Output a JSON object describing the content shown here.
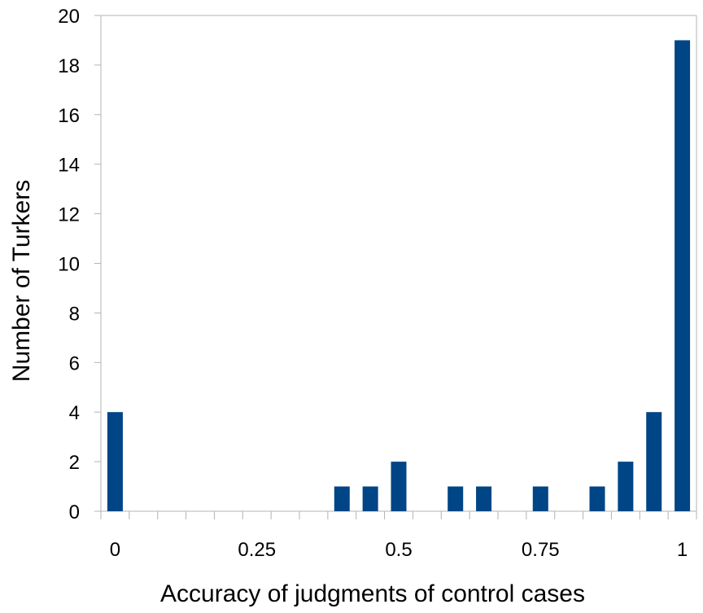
{
  "chart_data": {
    "type": "bar",
    "xlabel": "Accuracy of judgments of control cases",
    "ylabel": "Number of Turkers",
    "ylim": [
      0,
      20
    ],
    "yticks": [
      0,
      2,
      4,
      6,
      8,
      10,
      12,
      14,
      16,
      18,
      20
    ],
    "xlim": [
      0,
      1
    ],
    "xtick_values": [
      0,
      0.25,
      0.5,
      0.75,
      1
    ],
    "xtick_labels": [
      "0",
      "0.25",
      "0.5",
      "0.75",
      "1"
    ],
    "bin_width": 0.05,
    "categories": [
      "0",
      "0.05",
      "0.1",
      "0.15",
      "0.2",
      "0.25",
      "0.3",
      "0.35",
      "0.4",
      "0.45",
      "0.5",
      "0.55",
      "0.6",
      "0.65",
      "0.7",
      "0.75",
      "0.8",
      "0.85",
      "0.9",
      "0.95",
      "1"
    ],
    "x": [
      0,
      0.05,
      0.1,
      0.15,
      0.2,
      0.25,
      0.3,
      0.35,
      0.4,
      0.45,
      0.5,
      0.55,
      0.6,
      0.65,
      0.7,
      0.75,
      0.8,
      0.85,
      0.9,
      0.95,
      1
    ],
    "values": [
      4,
      0,
      0,
      0,
      0,
      0,
      0,
      0,
      1,
      1,
      2,
      0,
      1,
      1,
      0,
      1,
      0,
      1,
      2,
      4,
      19
    ],
    "grid": false,
    "legend": "none",
    "colors": {
      "bar": "#004586",
      "axis": "#b3b3b3",
      "text": "#000000"
    }
  }
}
